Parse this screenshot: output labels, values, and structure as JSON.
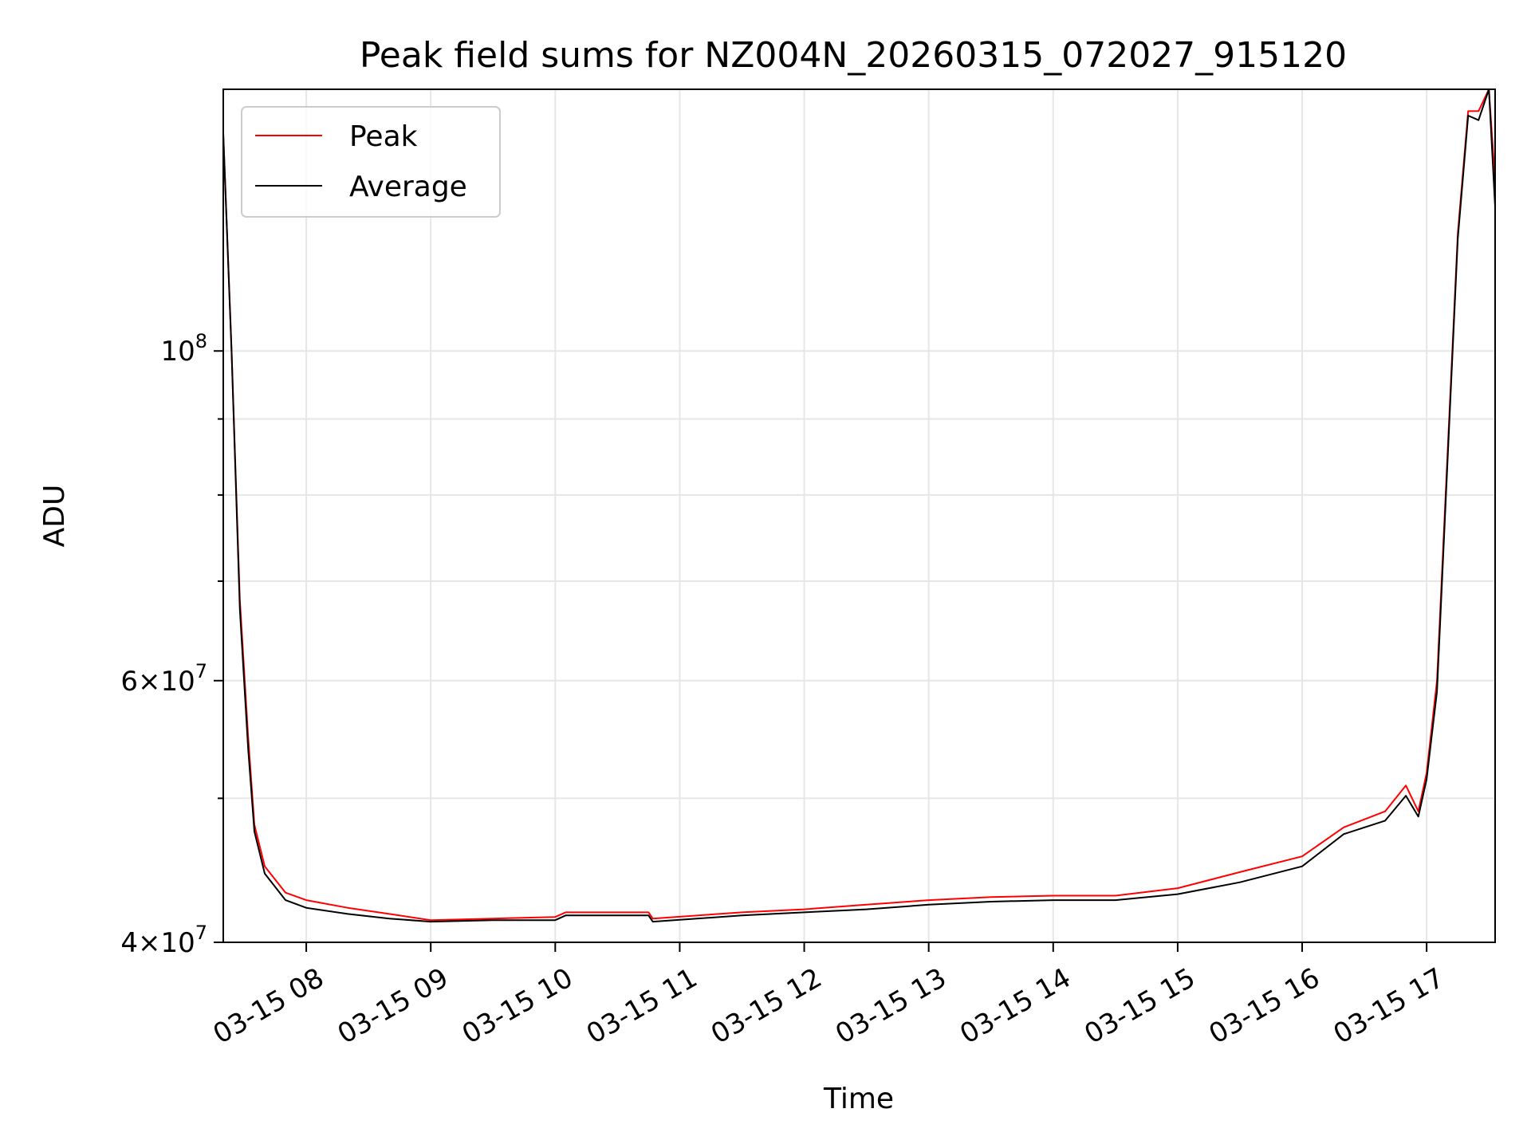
{
  "chart_data": {
    "type": "line",
    "title": "Peak field sums for NZ004N_20260315_072027_915120",
    "xlabel": "Time",
    "ylabel": "ADU",
    "yscale": "log",
    "grid": true,
    "legend_placement": "upper-left",
    "xlim": [
      "2026-03-15 07:20",
      "2026-03-15 17:33"
    ],
    "ylim": [
      40000000,
      150000000
    ],
    "x_ticks": [
      {
        "t": "2026-03-15 08:00",
        "label": "03-15 08"
      },
      {
        "t": "2026-03-15 09:00",
        "label": "03-15 09"
      },
      {
        "t": "2026-03-15 10:00",
        "label": "03-15 10"
      },
      {
        "t": "2026-03-15 11:00",
        "label": "03-15 11"
      },
      {
        "t": "2026-03-15 12:00",
        "label": "03-15 12"
      },
      {
        "t": "2026-03-15 13:00",
        "label": "03-15 13"
      },
      {
        "t": "2026-03-15 14:00",
        "label": "03-15 14"
      },
      {
        "t": "2026-03-15 15:00",
        "label": "03-15 15"
      },
      {
        "t": "2026-03-15 16:00",
        "label": "03-15 16"
      },
      {
        "t": "2026-03-15 17:00",
        "label": "03-15 17"
      }
    ],
    "y_major_ticks": [
      {
        "value": 40000000,
        "mant": "4",
        "exp": "7"
      },
      {
        "value": 60000000,
        "mant": "6",
        "exp": "7"
      },
      {
        "value": 100000000,
        "mant": "",
        "exp": "8"
      }
    ],
    "y_minor_ticks": [
      50000000,
      70000000,
      80000000,
      90000000
    ],
    "series": [
      {
        "name": "Peak",
        "color": "#ff0000",
        "points": [
          [
            "2026-03-15 07:20",
            140000000
          ],
          [
            "2026-03-15 07:24",
            100000000
          ],
          [
            "2026-03-15 07:28",
            68000000
          ],
          [
            "2026-03-15 07:32",
            55000000
          ],
          [
            "2026-03-15 07:35",
            48000000
          ],
          [
            "2026-03-15 07:40",
            45000000
          ],
          [
            "2026-03-15 07:50",
            43200000
          ],
          [
            "2026-03-15 08:00",
            42700000
          ],
          [
            "2026-03-15 08:20",
            42200000
          ],
          [
            "2026-03-15 08:40",
            41800000
          ],
          [
            "2026-03-15 09:00",
            41400000
          ],
          [
            "2026-03-15 09:30",
            41500000
          ],
          [
            "2026-03-15 10:00",
            41600000
          ],
          [
            "2026-03-15 10:05",
            41900000
          ],
          [
            "2026-03-15 10:45",
            41900000
          ],
          [
            "2026-03-15 10:47",
            41500000
          ],
          [
            "2026-03-15 11:30",
            41900000
          ],
          [
            "2026-03-15 12:00",
            42100000
          ],
          [
            "2026-03-15 12:30",
            42400000
          ],
          [
            "2026-03-15 13:00",
            42700000
          ],
          [
            "2026-03-15 13:30",
            42900000
          ],
          [
            "2026-03-15 14:00",
            43000000
          ],
          [
            "2026-03-15 14:30",
            43000000
          ],
          [
            "2026-03-15 15:00",
            43500000
          ],
          [
            "2026-03-15 15:30",
            44600000
          ],
          [
            "2026-03-15 16:00",
            45700000
          ],
          [
            "2026-03-15 16:20",
            47800000
          ],
          [
            "2026-03-15 16:40",
            49000000
          ],
          [
            "2026-03-15 16:50",
            51000000
          ],
          [
            "2026-03-15 16:56",
            49000000
          ],
          [
            "2026-03-15 17:00",
            52000000
          ],
          [
            "2026-03-15 17:05",
            60000000
          ],
          [
            "2026-03-15 17:10",
            85000000
          ],
          [
            "2026-03-15 17:15",
            120000000
          ],
          [
            "2026-03-15 17:20",
            145000000
          ],
          [
            "2026-03-15 17:25",
            145000000
          ],
          [
            "2026-03-15 17:30",
            150000000
          ],
          [
            "2026-03-15 17:33",
            130000000
          ]
        ]
      },
      {
        "name": "Average",
        "color": "#000000",
        "points": [
          [
            "2026-03-15 07:20",
            140000000
          ],
          [
            "2026-03-15 07:24",
            100000000
          ],
          [
            "2026-03-15 07:28",
            67000000
          ],
          [
            "2026-03-15 07:32",
            54000000
          ],
          [
            "2026-03-15 07:35",
            47500000
          ],
          [
            "2026-03-15 07:40",
            44500000
          ],
          [
            "2026-03-15 07:50",
            42700000
          ],
          [
            "2026-03-15 08:00",
            42200000
          ],
          [
            "2026-03-15 08:20",
            41800000
          ],
          [
            "2026-03-15 08:40",
            41500000
          ],
          [
            "2026-03-15 09:00",
            41300000
          ],
          [
            "2026-03-15 09:30",
            41400000
          ],
          [
            "2026-03-15 10:00",
            41400000
          ],
          [
            "2026-03-15 10:05",
            41700000
          ],
          [
            "2026-03-15 10:45",
            41700000
          ],
          [
            "2026-03-15 10:47",
            41300000
          ],
          [
            "2026-03-15 11:30",
            41700000
          ],
          [
            "2026-03-15 12:00",
            41900000
          ],
          [
            "2026-03-15 12:30",
            42100000
          ],
          [
            "2026-03-15 13:00",
            42400000
          ],
          [
            "2026-03-15 13:30",
            42600000
          ],
          [
            "2026-03-15 14:00",
            42700000
          ],
          [
            "2026-03-15 14:30",
            42700000
          ],
          [
            "2026-03-15 15:00",
            43100000
          ],
          [
            "2026-03-15 15:30",
            43900000
          ],
          [
            "2026-03-15 16:00",
            45000000
          ],
          [
            "2026-03-15 16:20",
            47300000
          ],
          [
            "2026-03-15 16:40",
            48300000
          ],
          [
            "2026-03-15 16:50",
            50200000
          ],
          [
            "2026-03-15 16:56",
            48600000
          ],
          [
            "2026-03-15 17:00",
            51500000
          ],
          [
            "2026-03-15 17:05",
            59000000
          ],
          [
            "2026-03-15 17:10",
            84000000
          ],
          [
            "2026-03-15 17:15",
            119000000
          ],
          [
            "2026-03-15 17:20",
            144000000
          ],
          [
            "2026-03-15 17:25",
            143000000
          ],
          [
            "2026-03-15 17:30",
            150000000
          ],
          [
            "2026-03-15 17:33",
            125000000
          ]
        ]
      }
    ]
  }
}
